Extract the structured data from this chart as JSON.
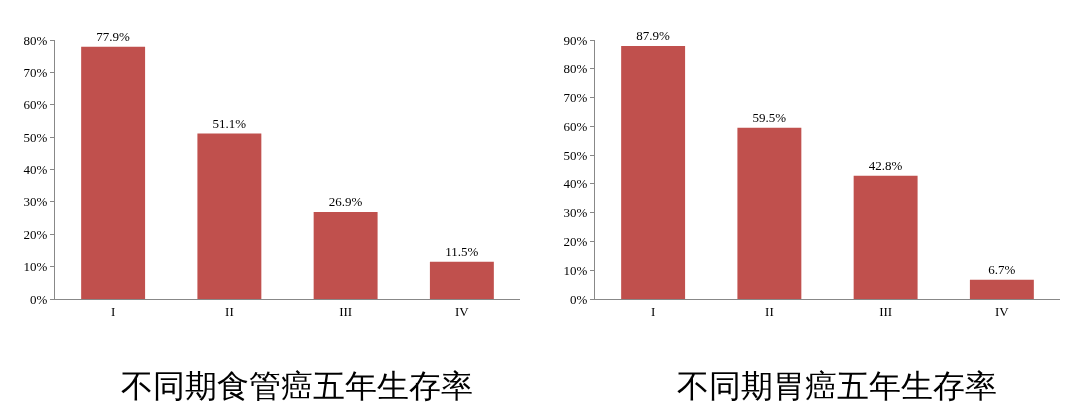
{
  "chart_data": [
    {
      "type": "bar",
      "title": "不同期食管癌五年生存率",
      "categories": [
        "I",
        "II",
        "III",
        "IV"
      ],
      "values": [
        77.9,
        51.1,
        26.9,
        11.5
      ],
      "value_labels": [
        "77.9%",
        "51.1%",
        "26.9%",
        "11.5%"
      ],
      "color": "#c0504d",
      "ylim": [
        0,
        80
      ],
      "yticks": [
        {
          "value": 0,
          "label": "0%"
        },
        {
          "value": 10,
          "label": "10%"
        },
        {
          "value": 20,
          "label": "20%"
        },
        {
          "value": 30,
          "label": "30%"
        },
        {
          "value": 40,
          "label": "40%"
        },
        {
          "value": 50,
          "label": "50%"
        },
        {
          "value": 60,
          "label": "60%"
        },
        {
          "value": 70,
          "label": "70%"
        },
        {
          "value": 80,
          "label": "80%"
        }
      ]
    },
    {
      "type": "bar",
      "title": "不同期胃癌五年生存率",
      "categories": [
        "I",
        "II",
        "III",
        "IV"
      ],
      "values": [
        87.9,
        59.5,
        42.8,
        6.7
      ],
      "value_labels": [
        "87.9%",
        "59.5%",
        "42.8%",
        "6.7%"
      ],
      "color": "#c0504d",
      "ylim": [
        0,
        90
      ],
      "yticks": [
        {
          "value": 0,
          "label": "0%"
        },
        {
          "value": 10,
          "label": "10%"
        },
        {
          "value": 20,
          "label": "20%"
        },
        {
          "value": 30,
          "label": "30%"
        },
        {
          "value": 40,
          "label": "40%"
        },
        {
          "value": 50,
          "label": "50%"
        },
        {
          "value": 60,
          "label": "60%"
        },
        {
          "value": 70,
          "label": "70%"
        },
        {
          "value": 80,
          "label": "80%"
        },
        {
          "value": 90,
          "label": "90%"
        }
      ]
    }
  ]
}
